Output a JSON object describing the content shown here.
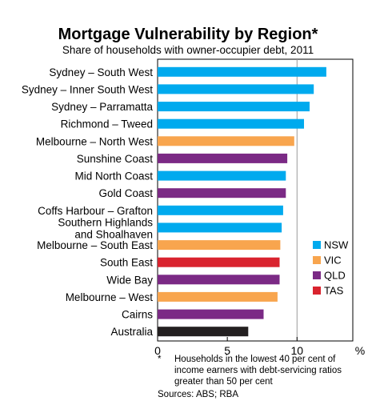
{
  "chart_data": {
    "type": "bar",
    "orientation": "horizontal",
    "title": "Mortgage Vulnerability by Region*",
    "subtitle": "Share of households with owner-occupier debt, 2011",
    "x_unit_label": "%",
    "xlim": [
      0,
      14
    ],
    "x_ticks": [
      "0",
      "5",
      "10"
    ],
    "x_tick_values": [
      0,
      5,
      10
    ],
    "grid": "vertical at 10",
    "legend_position": "right",
    "legend": [
      {
        "label": "NSW",
        "color": "#00aaee"
      },
      {
        "label": "VIC",
        "color": "#f8a54e"
      },
      {
        "label": "QLD",
        "color": "#7b2a85"
      },
      {
        "label": "TAS",
        "color": "#d9232e"
      }
    ],
    "bars": [
      {
        "label": [
          "Sydney – South West"
        ],
        "value": 12.1,
        "group": "NSW"
      },
      {
        "label": [
          "Sydney – Inner South West"
        ],
        "value": 11.2,
        "group": "NSW"
      },
      {
        "label": [
          "Sydney – Parramatta"
        ],
        "value": 10.9,
        "group": "NSW"
      },
      {
        "label": [
          "Richmond – Tweed"
        ],
        "value": 10.5,
        "group": "NSW"
      },
      {
        "label": [
          "Melbourne – North West"
        ],
        "value": 9.8,
        "group": "VIC"
      },
      {
        "label": [
          "Sunshine Coast"
        ],
        "value": 9.3,
        "group": "QLD"
      },
      {
        "label": [
          "Mid North Coast"
        ],
        "value": 9.2,
        "group": "NSW"
      },
      {
        "label": [
          "Gold Coast"
        ],
        "value": 9.2,
        "group": "QLD"
      },
      {
        "label": [
          "Coffs Harbour – Grafton"
        ],
        "value": 9.0,
        "group": "NSW"
      },
      {
        "label": [
          "Southern Highlands",
          "and Shoalhaven"
        ],
        "value": 8.9,
        "group": "NSW"
      },
      {
        "label": [
          "Melbourne – South East"
        ],
        "value": 8.8,
        "group": "VIC"
      },
      {
        "label": [
          "South East"
        ],
        "value": 8.75,
        "group": "TAS"
      },
      {
        "label": [
          "Wide Bay"
        ],
        "value": 8.75,
        "group": "QLD"
      },
      {
        "label": [
          "Melbourne – West"
        ],
        "value": 8.6,
        "group": "VIC"
      },
      {
        "label": [
          "Cairns"
        ],
        "value": 7.6,
        "group": "QLD"
      },
      {
        "label": [
          "Australia"
        ],
        "value": 6.5,
        "group": "Australia",
        "color": "#231f20"
      }
    ]
  },
  "notes": {
    "footnote_mark": "*",
    "footnote_lines": [
      "Households in the lowest 40 per cent of",
      "income earners with debt-servicing ratios",
      "greater than 50 per cent"
    ],
    "sources": "Sources: ABS; RBA"
  }
}
